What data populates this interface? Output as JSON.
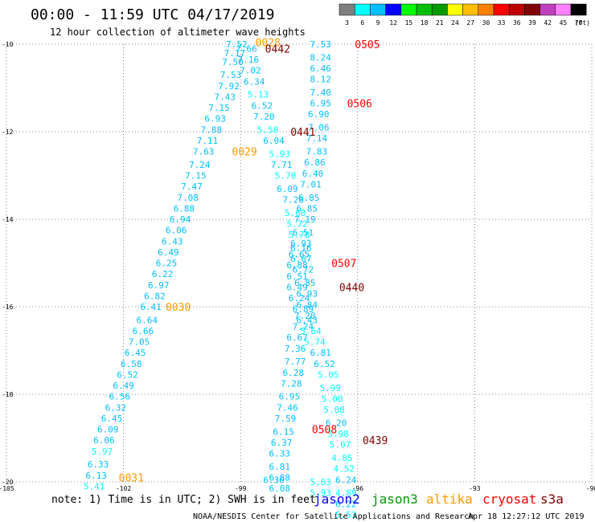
{
  "header": {
    "title": "00:00 - 11:59 UTC 04/17/2019",
    "subtitle": "12 hour collection of altimeter wave heights"
  },
  "scale": {
    "labels": [
      "3",
      "6",
      "9",
      "12",
      "15",
      "18",
      "21",
      "24",
      "27",
      "30",
      "33",
      "36",
      "39",
      "42",
      "45",
      "70"
    ],
    "unit": "(ft)",
    "colors": [
      "#7f7f7f",
      "#00ffff",
      "#00bfff",
      "#0000ff",
      "#00ff00",
      "#00bf00",
      "#009900",
      "#ffff00",
      "#ffbf00",
      "#ff8000",
      "#ff0000",
      "#bf0000",
      "#800000",
      "#bf40bf",
      "#ff80ff",
      "#000000"
    ]
  },
  "footer": {
    "note": "note: 1) Time is in UTC; 2) SWH is in feet",
    "credit": "NOAA/NESDIS Center for Satellite Applications and Research",
    "timestamp": "Apr 18 12:27:12 UTC 2019",
    "legend": [
      {
        "name": "jason2",
        "color": "#0000ff"
      },
      {
        "name": "jason3",
        "color": "#009900"
      },
      {
        "name": "altika",
        "color": "#ff9900"
      },
      {
        "name": "cryosat",
        "color": "#ff0000"
      },
      {
        "name": "s3a",
        "color": "#800000"
      }
    ]
  },
  "chart_data": {
    "type": "scatter",
    "xlim": [
      -105,
      -90
    ],
    "ylim": [
      -20,
      -10
    ],
    "x_ticks": [
      -105,
      -102,
      -99,
      -96,
      -93,
      -90
    ],
    "y_ticks": [
      -10,
      -12,
      -14,
      -16,
      -18,
      -20
    ],
    "grid": true,
    "value_colors": {
      "low": "#00bfff",
      "mid": "#00ffff"
    },
    "series": [
      {
        "values": [
          [
            -99.1,
            -10.0,
            "7.52"
          ],
          [
            -99.15,
            -10.2,
            "7.17"
          ],
          [
            -99.2,
            -10.4,
            "7.50"
          ],
          [
            -99.25,
            -10.7,
            "7.53"
          ],
          [
            -99.3,
            -10.95,
            "7.92"
          ],
          [
            -99.4,
            -11.2,
            "7.43"
          ],
          [
            -99.55,
            -11.45,
            "7.15"
          ],
          [
            -99.65,
            -11.7,
            "6.93"
          ],
          [
            -99.75,
            -11.95,
            "7.88"
          ],
          [
            -99.85,
            -12.2,
            "7.11"
          ],
          [
            -99.95,
            -12.45,
            "7.63"
          ],
          [
            -100.05,
            -12.75,
            "7.24"
          ],
          [
            -100.15,
            -13.0,
            "7.15"
          ],
          [
            -100.25,
            -13.25,
            "7.47"
          ],
          [
            -100.35,
            -13.5,
            "7.08"
          ],
          [
            -100.45,
            -13.75,
            "6.88"
          ],
          [
            -100.55,
            -14.0,
            "6.94"
          ],
          [
            -100.65,
            -14.25,
            "6.06"
          ],
          [
            -100.75,
            -14.5,
            "6.43"
          ],
          [
            -100.85,
            -14.75,
            "6.49"
          ],
          [
            -100.9,
            -15.0,
            "6.25"
          ],
          [
            -101.0,
            -15.25,
            "6.22"
          ],
          [
            -101.1,
            -15.5,
            "6.97"
          ],
          [
            -101.2,
            -15.75,
            "6.82"
          ],
          [
            -101.3,
            -16.0,
            "6.41"
          ],
          [
            -101.4,
            -16.3,
            "6.64"
          ],
          [
            -101.5,
            -16.55,
            "6.66"
          ],
          [
            -101.6,
            -16.8,
            "7.05"
          ],
          [
            -101.7,
            -17.05,
            "6.45"
          ],
          [
            -101.8,
            -17.3,
            "6.58"
          ],
          [
            -101.9,
            -17.55,
            "6.52"
          ],
          [
            -102.0,
            -17.8,
            "6.49"
          ],
          [
            -102.1,
            -18.05,
            "6.56"
          ],
          [
            -102.2,
            -18.3,
            "6.32"
          ],
          [
            -102.3,
            -18.55,
            "6.45"
          ],
          [
            -102.4,
            -18.8,
            "6.09"
          ],
          [
            -102.5,
            -19.05,
            "6.06"
          ],
          [
            -102.55,
            -19.3,
            "5.97"
          ],
          [
            -102.65,
            -19.6,
            "6.33"
          ],
          [
            -102.7,
            -19.85,
            "6.13"
          ],
          [
            -102.75,
            -20.1,
            "5.41"
          ]
        ]
      },
      {
        "values": [
          [
            -98.85,
            -10.1,
            "7.66"
          ],
          [
            -98.8,
            -10.35,
            "7.16"
          ],
          [
            -98.75,
            -10.6,
            "7.02"
          ],
          [
            -98.65,
            -10.85,
            "6.34"
          ],
          [
            -98.55,
            -11.15,
            "5.13"
          ],
          [
            -98.45,
            -11.4,
            "6.52"
          ],
          [
            -98.4,
            -11.65,
            "7.20"
          ],
          [
            -98.3,
            -11.95,
            "5.58"
          ],
          [
            -98.15,
            -12.2,
            "6.04"
          ],
          [
            -98.0,
            -12.5,
            "5.93"
          ],
          [
            -97.95,
            -12.75,
            "7.71"
          ],
          [
            -97.85,
            -13.0,
            "5.70"
          ],
          [
            -97.8,
            -13.3,
            "6.09"
          ],
          [
            -97.65,
            -13.55,
            "7.28"
          ],
          [
            -97.6,
            -13.85,
            "5.60"
          ],
          [
            -97.55,
            -14.1,
            "5.72"
          ],
          [
            -97.5,
            -14.35,
            "5.78"
          ],
          [
            -97.45,
            -14.65,
            "6.16"
          ],
          [
            -97.45,
            -14.9,
            "6.67"
          ],
          [
            -97.4,
            -15.15,
            "6.72"
          ],
          [
            -97.35,
            -15.45,
            "6.85"
          ],
          [
            -97.3,
            -15.7,
            "6.93"
          ],
          [
            -97.3,
            -15.95,
            "6.84"
          ],
          [
            -97.35,
            -16.2,
            "7.20"
          ],
          [
            -97.4,
            -16.45,
            "7.24"
          ],
          [
            -97.55,
            -16.7,
            "6.67"
          ],
          [
            -97.6,
            -16.95,
            "7.36"
          ],
          [
            -97.6,
            -17.25,
            "7.77"
          ],
          [
            -97.65,
            -17.5,
            "6.28"
          ],
          [
            -97.7,
            -17.75,
            "7.28"
          ],
          [
            -97.75,
            -18.05,
            "6.95"
          ],
          [
            -97.8,
            -18.3,
            "7.46"
          ],
          [
            -97.85,
            -18.55,
            "7.59"
          ],
          [
            -97.9,
            -18.85,
            "6.15"
          ],
          [
            -97.95,
            -19.1,
            "6.37"
          ],
          [
            -98.0,
            -19.35,
            "6.33"
          ],
          [
            -98.0,
            -19.65,
            "6.81"
          ],
          [
            -98.0,
            -19.9,
            "6.88"
          ],
          [
            -98.0,
            -20.15,
            "6.08"
          ]
        ]
      },
      {
        "values": [
          [
            -96.95,
            -10.0,
            "7.53"
          ],
          [
            -96.95,
            -10.3,
            "8.24"
          ],
          [
            -96.95,
            -10.55,
            "6.46"
          ],
          [
            -96.95,
            -10.8,
            "8.12"
          ],
          [
            -96.95,
            -11.1,
            "7.40"
          ],
          [
            -96.95,
            -11.35,
            "6.95"
          ],
          [
            -97.0,
            -11.6,
            "6.90"
          ],
          [
            -97.0,
            -11.9,
            "7.06"
          ],
          [
            -97.05,
            -12.15,
            "7.14"
          ],
          [
            -97.05,
            -12.45,
            "7.83"
          ],
          [
            -97.1,
            -12.7,
            "6.86"
          ],
          [
            -97.15,
            -12.95,
            "6.40"
          ],
          [
            -97.2,
            -13.2,
            "7.01"
          ],
          [
            -97.25,
            -13.5,
            "6.85"
          ],
          [
            -97.3,
            -13.75,
            "6.85"
          ],
          [
            -97.35,
            -14.0,
            "7.19"
          ],
          [
            -97.4,
            -14.3,
            "6.51"
          ],
          [
            -97.45,
            -14.55,
            "6.93"
          ],
          [
            -97.5,
            -14.8,
            "6.65"
          ],
          [
            -97.55,
            -15.05,
            "6.88"
          ],
          [
            -97.55,
            -15.3,
            "6.51"
          ],
          [
            -97.55,
            -15.55,
            "6.49"
          ],
          [
            -97.5,
            -15.8,
            "6.24"
          ],
          [
            -97.4,
            -16.05,
            "6.89"
          ],
          [
            -97.3,
            -16.3,
            "6.43"
          ],
          [
            -97.2,
            -16.55,
            "5.64"
          ],
          [
            -97.1,
            -16.8,
            "5.74"
          ],
          [
            -96.95,
            -17.05,
            "6.81"
          ],
          [
            -96.85,
            -17.3,
            "6.52"
          ],
          [
            -96.75,
            -17.55,
            "5.05"
          ],
          [
            -96.7,
            -17.85,
            "5.99"
          ],
          [
            -96.65,
            -18.1,
            "5.00"
          ],
          [
            -96.6,
            -18.35,
            "5.08"
          ],
          [
            -96.55,
            -18.65,
            "6.20"
          ],
          [
            -96.5,
            -18.9,
            "5.98"
          ],
          [
            -96.45,
            -19.15,
            "5.07"
          ],
          [
            -96.4,
            -19.45,
            "4.85"
          ],
          [
            -96.35,
            -19.7,
            "4.52"
          ],
          [
            -96.3,
            -19.95,
            "6.24"
          ],
          [
            -96.3,
            -20.25,
            "4.89"
          ],
          [
            -96.3,
            -20.5,
            "6.22"
          ],
          [
            -96.3,
            -20.75,
            "5.53"
          ]
        ]
      },
      {
        "values": [
          [
            -96.95,
            -20.0,
            "5.63"
          ],
          [
            -96.95,
            -20.25,
            "5.93"
          ],
          [
            -98.15,
            -19.95,
            "6.30"
          ]
        ]
      }
    ],
    "time_labels": [
      {
        "text": "0028",
        "x": -98.3,
        "y": -9.95,
        "color": "#ff9900"
      },
      {
        "text": "0442",
        "x": -98.05,
        "y": -10.1,
        "color": "#800000"
      },
      {
        "text": "0505",
        "x": -95.75,
        "y": -10.0,
        "color": "#ff0000"
      },
      {
        "text": "0506",
        "x": -95.95,
        "y": -11.35,
        "color": "#ff0000"
      },
      {
        "text": "0441",
        "x": -97.4,
        "y": -12.0,
        "color": "#800000"
      },
      {
        "text": "0029",
        "x": -98.9,
        "y": -12.45,
        "color": "#ff9900"
      },
      {
        "text": "0507",
        "x": -96.35,
        "y": -15.0,
        "color": "#ff0000"
      },
      {
        "text": "0440",
        "x": -96.15,
        "y": -15.55,
        "color": "#800000"
      },
      {
        "text": "0030",
        "x": -100.6,
        "y": -16.0,
        "color": "#ff9900"
      },
      {
        "text": "0508",
        "x": -96.85,
        "y": -18.8,
        "color": "#ff0000"
      },
      {
        "text": "0439",
        "x": -95.55,
        "y": -19.05,
        "color": "#800000"
      },
      {
        "text": "0031",
        "x": -101.8,
        "y": -19.9,
        "color": "#ff9900"
      }
    ]
  }
}
